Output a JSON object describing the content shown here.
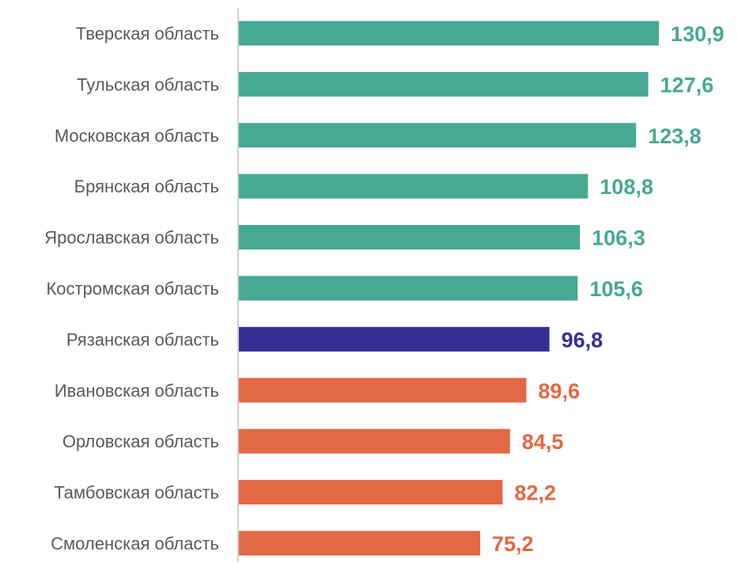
{
  "chart_data": {
    "type": "bar",
    "orientation": "horizontal",
    "title": "",
    "xlabel": "",
    "ylabel": "",
    "grid": false,
    "legend": "none",
    "categories": [
      "Тверская область",
      "Тульская область",
      "Московская область",
      "Брянская область",
      "Ярославская область",
      "Костромская область",
      "Рязанская область",
      "Ивановская область",
      "Орловская область",
      "Тамбовская область",
      "Смоленская область"
    ],
    "values": [
      130.9,
      127.6,
      123.8,
      108.8,
      106.3,
      105.6,
      96.8,
      89.6,
      84.5,
      82.2,
      75.2
    ],
    "value_labels": [
      "130,9",
      "127,6",
      "123,8",
      "108,8",
      "106,3",
      "105,6",
      "96,8",
      "89,6",
      "84,5",
      "82,2",
      "75,2"
    ],
    "bar_colors": [
      "#47a992",
      "#47a992",
      "#47a992",
      "#47a992",
      "#47a992",
      "#47a992",
      "#352f95",
      "#e36844",
      "#e36844",
      "#e36844",
      "#e36844"
    ],
    "xlim": [
      0,
      131
    ]
  }
}
